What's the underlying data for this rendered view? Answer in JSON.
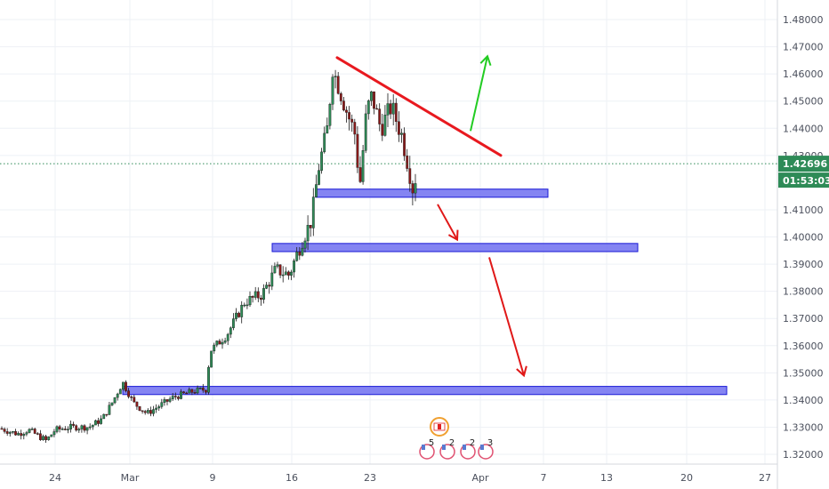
{
  "chart_data": {
    "type": "candlestick",
    "colors": {
      "up": "#2e8b57",
      "down": "#8b1a1a",
      "grid": "#eef1f6",
      "axis_text": "#4a4f5c",
      "price_line": "#2e8b57",
      "zone_fill": "#6f6ff0",
      "zone_stroke": "#1a1ad6",
      "trendline": "#e8191f",
      "arrow_up": "#22cc22",
      "arrow_down": "#e01818"
    },
    "y_ticks": [
      "1.48000",
      "1.47000",
      "1.46000",
      "1.45000",
      "1.44000",
      "1.43000",
      "1.41000",
      "1.40000",
      "1.39000",
      "1.38000",
      "1.37000",
      "1.36000",
      "1.35000",
      "1.34000",
      "1.33000",
      "1.32000"
    ],
    "x_ticks": [
      "24",
      "Mar",
      "9",
      "16",
      "23",
      "Apr",
      "7",
      "13",
      "20",
      "27"
    ],
    "ylim": [
      1.3175,
      1.4845
    ],
    "last_price": "1.42696",
    "countdown": "01:53:03",
    "events": [
      {
        "label": "5"
      },
      {
        "label": "2"
      },
      {
        "label": "2"
      },
      {
        "label": "3"
      }
    ],
    "zones": [
      {
        "x_from": 355,
        "x_to": 616,
        "y_top": 1.4176,
        "y_bottom": 1.4146
      },
      {
        "x_from": 306,
        "x_to": 717,
        "y_top": 1.3976,
        "y_bottom": 1.3946
      },
      {
        "x_from": 138,
        "x_to": 817,
        "y_top": 1.345,
        "y_bottom": 1.342
      }
    ],
    "trendline": {
      "x1": 379,
      "y1": 1.466,
      "x2": 563,
      "y2": 1.43
    },
    "arrows": [
      {
        "direction": "up",
        "x1": 529,
        "y1": 1.439,
        "x2": 548,
        "y2": 1.4665
      },
      {
        "direction": "down",
        "x1": 492,
        "y1": 1.412,
        "x2": 514,
        "y2": 1.399
      },
      {
        "direction": "down",
        "x1": 550,
        "y1": 1.3925,
        "x2": 589,
        "y2": 1.349
      }
    ]
  }
}
